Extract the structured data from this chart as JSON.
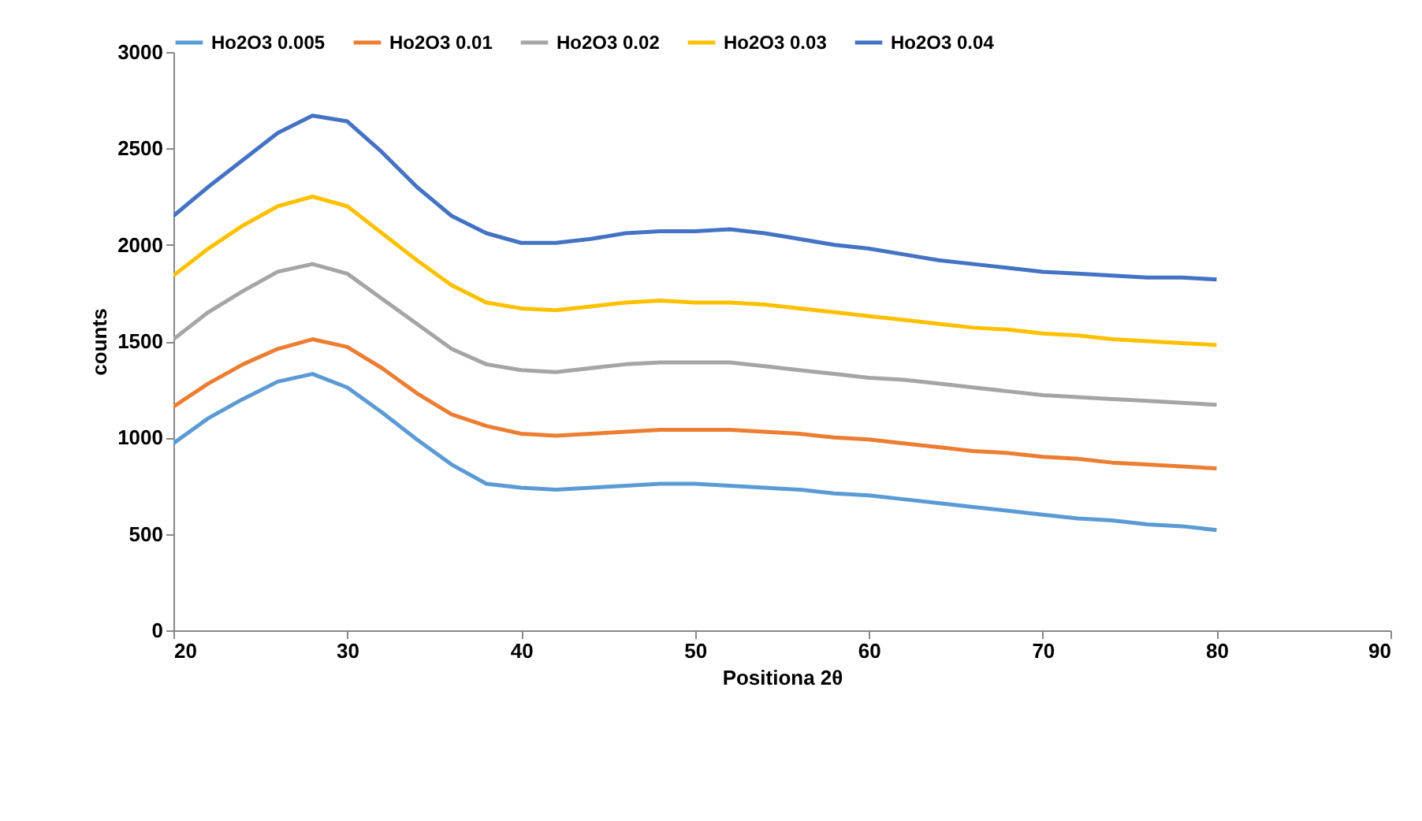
{
  "chart_data": {
    "type": "line",
    "xlabel": "Positiona 2θ",
    "ylabel": "counts",
    "legend": "top",
    "grid": false,
    "marker": "none",
    "line_style": "solid",
    "xlim": [
      20,
      90
    ],
    "xticks": [
      20,
      30,
      40,
      50,
      60,
      70,
      80,
      90
    ],
    "ylim": [
      0,
      3000
    ],
    "yticks": [
      0,
      500,
      1000,
      1500,
      2000,
      2500,
      3000
    ],
    "x": [
      20,
      22,
      24,
      26,
      28,
      30,
      32,
      34,
      36,
      38,
      40,
      42,
      44,
      46,
      48,
      50,
      52,
      54,
      56,
      58,
      60,
      62,
      64,
      66,
      68,
      70,
      72,
      74,
      76,
      78,
      80
    ],
    "series": [
      {
        "name": "Ho2O3 0.005",
        "color": "#5b9bd5",
        "values": [
          970,
          1100,
          1200,
          1290,
          1330,
          1260,
          1130,
          990,
          860,
          760,
          740,
          730,
          740,
          750,
          760,
          760,
          750,
          740,
          730,
          710,
          700,
          680,
          660,
          640,
          620,
          600,
          580,
          570,
          550,
          540,
          520
        ]
      },
      {
        "name": "Ho2O3 0.01",
        "color": "#ed7d31",
        "values": [
          1160,
          1280,
          1380,
          1460,
          1510,
          1470,
          1360,
          1230,
          1120,
          1060,
          1020,
          1010,
          1020,
          1030,
          1040,
          1040,
          1040,
          1030,
          1020,
          1000,
          990,
          970,
          950,
          930,
          920,
          900,
          890,
          870,
          860,
          850,
          840
        ]
      },
      {
        "name": "Ho2O3 0.02",
        "color": "#a5a5a5",
        "values": [
          1510,
          1650,
          1760,
          1860,
          1900,
          1850,
          1720,
          1590,
          1460,
          1380,
          1350,
          1340,
          1360,
          1380,
          1390,
          1390,
          1390,
          1370,
          1350,
          1330,
          1310,
          1300,
          1280,
          1260,
          1240,
          1220,
          1210,
          1200,
          1190,
          1180,
          1170
        ]
      },
      {
        "name": "Ho2O3 0.03",
        "color": "#ffc000",
        "values": [
          1840,
          1980,
          2100,
          2200,
          2250,
          2200,
          2060,
          1920,
          1790,
          1700,
          1670,
          1660,
          1680,
          1700,
          1710,
          1700,
          1700,
          1690,
          1670,
          1650,
          1630,
          1610,
          1590,
          1570,
          1560,
          1540,
          1530,
          1510,
          1500,
          1490,
          1480
        ]
      },
      {
        "name": "Ho2O3 0.04",
        "color": "#4472c4",
        "values": [
          2150,
          2300,
          2440,
          2580,
          2670,
          2640,
          2480,
          2300,
          2150,
          2060,
          2010,
          2010,
          2030,
          2060,
          2070,
          2070,
          2080,
          2060,
          2030,
          2000,
          1980,
          1950,
          1920,
          1900,
          1880,
          1860,
          1850,
          1840,
          1830,
          1830,
          1820
        ]
      }
    ]
  }
}
